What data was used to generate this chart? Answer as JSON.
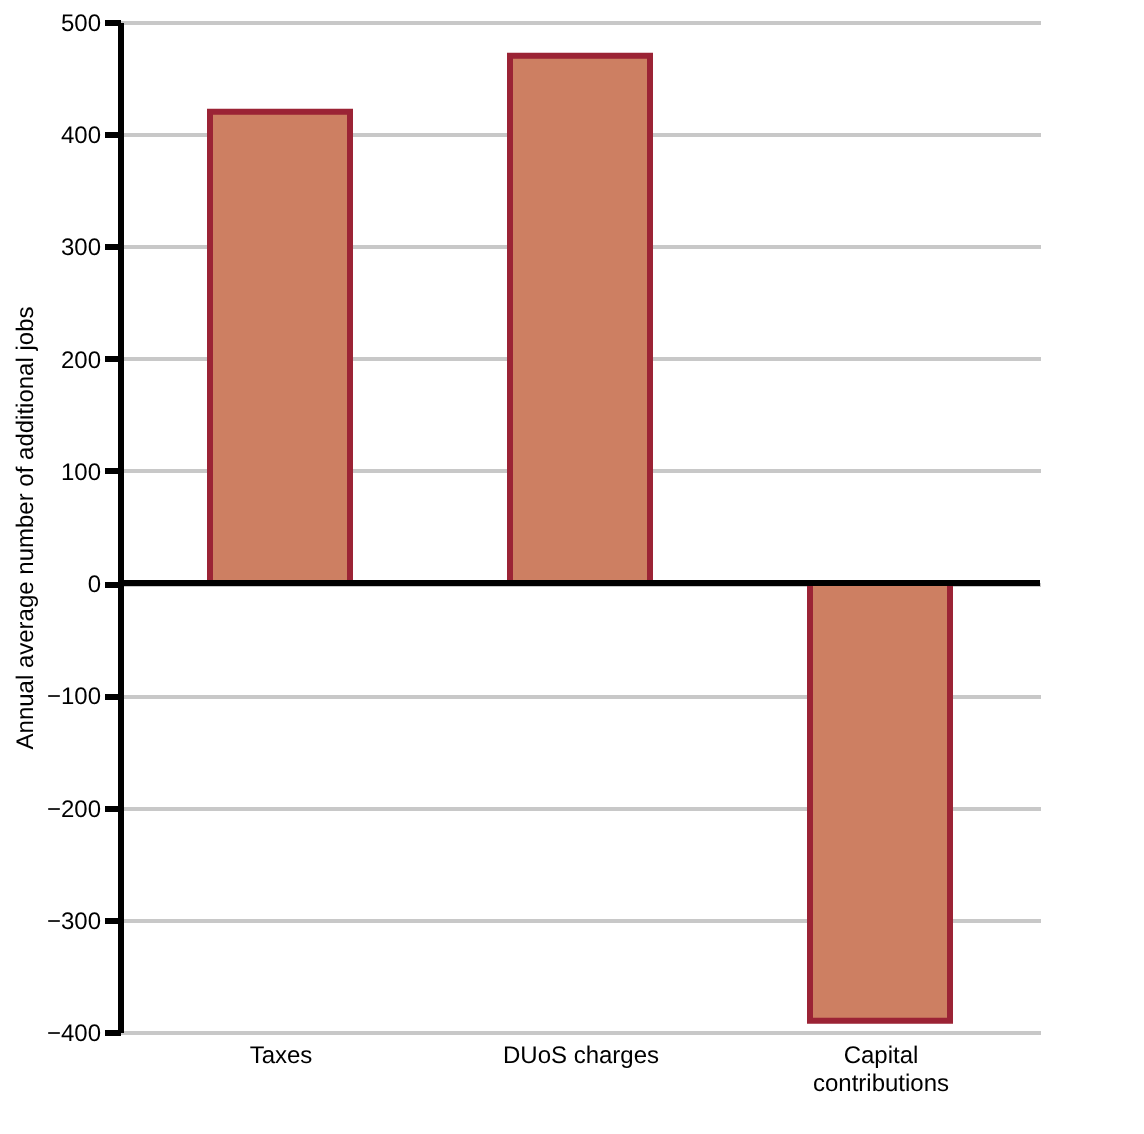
{
  "chart_data": {
    "type": "bar",
    "ylabel": "Annual average number of additional jobs",
    "categories": [
      "Taxes",
      "DUoS charges",
      "Capital\ncontributions"
    ],
    "values": [
      420,
      470,
      -390
    ],
    "color": "#cd7f62",
    "ylim": [
      -400,
      500
    ],
    "yticks": [
      -400,
      -300,
      -200,
      -100,
      0,
      100,
      200,
      300,
      400,
      500
    ],
    "grid": "y"
  }
}
